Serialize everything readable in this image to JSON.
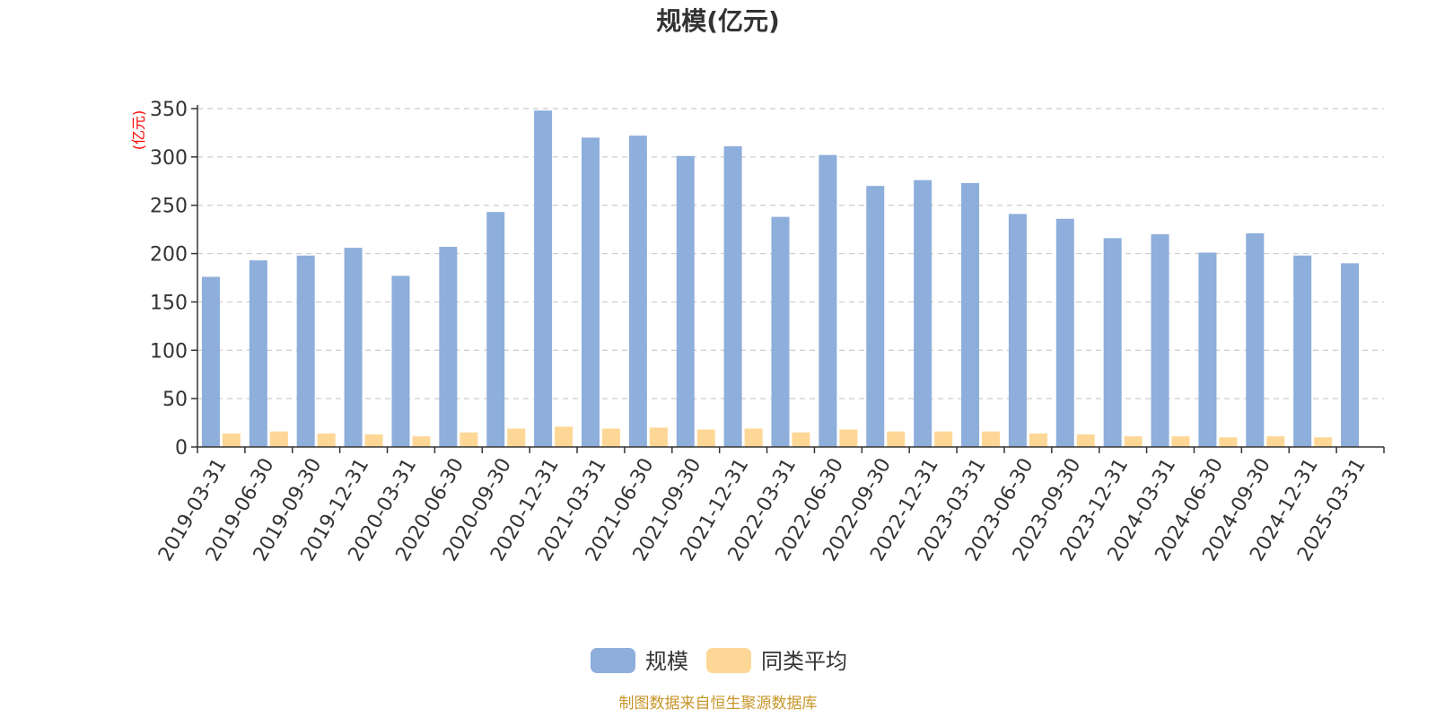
{
  "chart_data": {
    "type": "bar",
    "title": "规模(亿元)",
    "ylabel": "(亿元)",
    "ylim": [
      0,
      350
    ],
    "yticks": [
      0,
      50,
      100,
      150,
      200,
      250,
      300,
      350
    ],
    "grid": true,
    "legend_position": "bottom-center",
    "categories": [
      "2019-03-31",
      "2019-06-30",
      "2019-09-30",
      "2019-12-31",
      "2020-03-31",
      "2020-06-30",
      "2020-09-30",
      "2020-12-31",
      "2021-03-31",
      "2021-06-30",
      "2021-09-30",
      "2021-12-31",
      "2022-03-31",
      "2022-06-30",
      "2022-09-30",
      "2022-12-31",
      "2023-03-31",
      "2023-06-30",
      "2023-09-30",
      "2023-12-31",
      "2024-03-31",
      "2024-06-30",
      "2024-09-30",
      "2024-12-31",
      "2025-03-31"
    ],
    "series": [
      {
        "name": "规模",
        "color": "#8eaedb",
        "values": [
          176,
          193,
          198,
          206,
          177,
          207,
          243,
          348,
          320,
          322,
          301,
          311,
          238,
          302,
          270,
          276,
          273,
          241,
          236,
          216,
          220,
          201,
          221,
          198,
          190
        ]
      },
      {
        "name": "同类平均",
        "color": "#fdd796",
        "values": [
          14,
          16,
          14,
          13,
          11,
          15,
          19,
          21,
          19,
          20,
          18,
          19,
          15,
          18,
          16,
          16,
          16,
          14,
          13,
          11,
          11,
          10,
          11,
          10,
          null
        ]
      }
    ],
    "source_note": "制图数据来自恒生聚源数据库"
  }
}
